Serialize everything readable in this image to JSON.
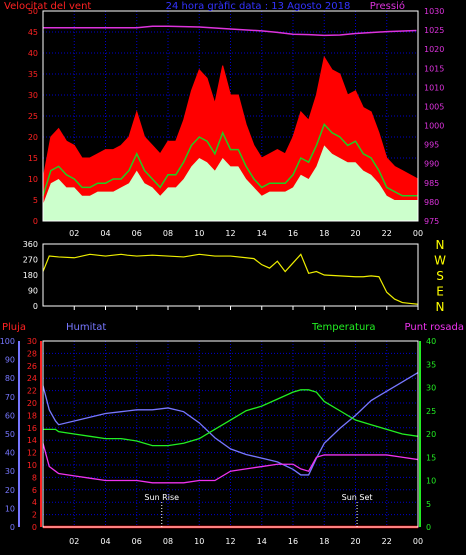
{
  "chart_data": [
    {
      "type": "line",
      "title": "24 hora gràfic data : 13 Agosto 2018",
      "left_axis_label": "Velocitat del vent",
      "right_axis_label": "Pressió",
      "left_ylim": [
        0,
        50
      ],
      "left_yticks": [
        0,
        5,
        10,
        15,
        20,
        25,
        30,
        35,
        40,
        45,
        50
      ],
      "right_ylim": [
        975,
        1030
      ],
      "right_yticks": [
        975,
        980,
        985,
        990,
        995,
        1000,
        1005,
        1010,
        1015,
        1020,
        1025,
        1030
      ],
      "x_tick_labels": [
        "02",
        "04",
        "06",
        "08",
        "10",
        "12",
        "14",
        "16",
        "18",
        "20",
        "22",
        "00"
      ],
      "grid": true,
      "colors": {
        "gust": "#ff0000",
        "avg": "#22cc22",
        "speed": "#ccffcc",
        "pressure": "#dd33dd",
        "grid": "#0000cc"
      },
      "series": [
        {
          "name": "",
          "axis": "right",
          "x": [
            0,
            2,
            4,
            6,
            7,
            8,
            9,
            10,
            12,
            14,
            15,
            16,
            17,
            18,
            19,
            20,
            22,
            23.9
          ],
          "values": [
            1025.6,
            1025.6,
            1025.6,
            1025.6,
            1026,
            1026,
            1025.9,
            1025.8,
            1025.3,
            1024.8,
            1024.4,
            1023.9,
            1023.8,
            1023.6,
            1023.7,
            1024.1,
            1024.6,
            1024.9
          ]
        },
        {
          "name": "",
          "axis": "left",
          "x": [
            0,
            0.5,
            1,
            1.5,
            2,
            2.5,
            3,
            3.5,
            4,
            4.5,
            5,
            5.5,
            6,
            6.5,
            7,
            7.5,
            8,
            8.5,
            9,
            9.5,
            10,
            10.5,
            11,
            11.5,
            12,
            12.5,
            13,
            13.5,
            14,
            14.5,
            15,
            15.5,
            16,
            16.5,
            17,
            17.5,
            18,
            18.5,
            19,
            19.5,
            20,
            20.5,
            21,
            21.5,
            22,
            22.5,
            23,
            23.5,
            24
          ],
          "values": [
            10,
            20,
            22,
            19,
            18,
            15,
            15,
            16,
            17,
            17,
            18,
            20,
            26,
            20,
            18,
            16,
            19,
            19,
            24,
            31,
            36,
            34,
            28,
            37,
            30,
            30,
            23,
            18,
            15,
            16,
            17,
            16,
            20,
            26,
            24,
            30,
            39,
            36,
            35,
            30,
            31,
            27,
            26,
            21,
            15,
            13,
            12,
            11,
            10
          ]
        },
        {
          "name": "",
          "axis": "left",
          "x": [
            0,
            0.5,
            1,
            1.5,
            2,
            2.5,
            3,
            3.5,
            4,
            4.5,
            5,
            5.5,
            6,
            6.5,
            7,
            7.5,
            8,
            8.5,
            9,
            9.5,
            10,
            10.5,
            11,
            11.5,
            12,
            12.5,
            13,
            13.5,
            14,
            14.5,
            15,
            15.5,
            16,
            16.5,
            17,
            17.5,
            18,
            18.5,
            19,
            19.5,
            20,
            20.5,
            21,
            21.5,
            22,
            22.5,
            23,
            23.5,
            24
          ],
          "values": [
            6,
            12,
            13,
            11,
            10,
            8,
            8,
            9,
            9,
            10,
            10,
            12,
            16,
            12,
            10,
            8,
            11,
            11,
            14,
            18,
            20,
            19,
            16,
            21,
            17,
            17,
            13,
            10,
            8,
            9,
            9,
            9,
            11,
            15,
            14,
            18,
            23,
            21,
            20,
            18,
            19,
            16,
            15,
            12,
            8,
            7,
            6,
            6,
            6
          ]
        },
        {
          "name": "",
          "axis": "left",
          "x": [
            0,
            0.5,
            1,
            1.5,
            2,
            2.5,
            3,
            3.5,
            4,
            4.5,
            5,
            5.5,
            6,
            6.5,
            7,
            7.5,
            8,
            8.5,
            9,
            9.5,
            10,
            10.5,
            11,
            11.5,
            12,
            12.5,
            13,
            13.5,
            14,
            14.5,
            15,
            15.5,
            16,
            16.5,
            17,
            17.5,
            18,
            18.5,
            19,
            19.5,
            20,
            20.5,
            21,
            21.5,
            22,
            22.5,
            23,
            23.5,
            24
          ],
          "values": [
            4,
            9,
            10,
            8,
            8,
            6,
            6,
            7,
            7,
            7,
            8,
            9,
            12,
            9,
            8,
            6,
            8,
            8,
            10,
            13,
            15,
            14,
            12,
            15,
            13,
            13,
            10,
            8,
            6,
            7,
            7,
            7,
            8,
            11,
            10,
            13,
            18,
            16,
            15,
            14,
            14,
            12,
            11,
            9,
            6,
            5,
            5,
            5,
            5
          ]
        }
      ]
    },
    {
      "type": "line",
      "y_tick_labels": [
        "0",
        "90",
        "180",
        "270",
        "360"
      ],
      "right_labels": [
        "N",
        "W",
        "S",
        "E",
        "N"
      ],
      "ylim": [
        0,
        360
      ],
      "x_tick_labels": [
        "02",
        "04",
        "06",
        "08",
        "10",
        "12",
        "14",
        "16",
        "18",
        "20",
        "22",
        "00"
      ],
      "colors": {
        "line": "#eeee00"
      },
      "series": [
        {
          "name": "",
          "x": [
            0,
            0.4,
            1,
            2,
            3,
            4,
            5,
            5.4,
            6,
            7,
            8,
            9,
            10,
            11,
            12,
            13,
            13.5,
            14,
            14.5,
            15,
            15.5,
            16,
            16.5,
            17,
            17.5,
            18,
            19,
            20,
            20.5,
            21,
            21.5,
            22,
            22.5,
            23,
            23.5,
            24
          ],
          "values": [
            200,
            290,
            285,
            280,
            300,
            290,
            300,
            295,
            290,
            295,
            290,
            285,
            300,
            290,
            290,
            280,
            275,
            240,
            220,
            260,
            200,
            250,
            300,
            190,
            200,
            180,
            175,
            170,
            170,
            175,
            170,
            80,
            40,
            20,
            15,
            10
          ]
        }
      ]
    },
    {
      "type": "line",
      "left_labels": [
        "Pluja",
        "Humitat"
      ],
      "right_labels": [
        "Temperatura",
        "Punt rosada"
      ],
      "humidity_ylim": [
        0,
        100
      ],
      "humidity_yticks": [
        0,
        10,
        20,
        30,
        40,
        50,
        60,
        70,
        80,
        90,
        100
      ],
      "rain_ylim": [
        0,
        30
      ],
      "rain_yticks": [
        0,
        2,
        4,
        6,
        8,
        10,
        12,
        14,
        16,
        18,
        20,
        22,
        24,
        26,
        28,
        30
      ],
      "temp_ylim": [
        0,
        40
      ],
      "temp_yticks": [
        0,
        5,
        10,
        15,
        20,
        25,
        30,
        35,
        40
      ],
      "x_tick_labels": [
        "02",
        "04",
        "06",
        "08",
        "10",
        "12",
        "14",
        "16",
        "18",
        "20",
        "22",
        "00"
      ],
      "annotations": [
        {
          "label": "Sun Rise",
          "x": 7.6
        },
        {
          "label": "Sun Set",
          "x": 20.1
        }
      ],
      "colors": {
        "humidity": "#7777ff",
        "temperature": "#22ee22",
        "dewpoint": "#ee33ee",
        "rain": "#ff0000",
        "grid": "#0000cc"
      },
      "series": [
        {
          "name": "",
          "axis": "humidity",
          "x": [
            0,
            0.4,
            0.8,
            1,
            2,
            3,
            4,
            5,
            6,
            7,
            8,
            9,
            10,
            11,
            12,
            13,
            14,
            15,
            16,
            16.5,
            17,
            17.5,
            18,
            19,
            20,
            21,
            22,
            23,
            24
          ],
          "values": [
            76,
            63,
            57,
            55,
            57,
            59,
            61,
            62,
            63,
            63,
            64,
            62,
            56,
            48,
            42,
            39,
            37,
            35,
            31,
            28,
            28,
            37,
            45,
            53,
            60,
            68,
            73,
            78,
            83
          ]
        },
        {
          "name": "",
          "axis": "temp",
          "x": [
            0,
            0.4,
            0.8,
            1,
            2,
            3,
            4,
            5,
            6,
            7,
            8,
            9,
            10,
            11,
            12,
            13,
            14,
            15,
            16,
            16.5,
            17,
            17.5,
            18,
            19,
            20,
            21,
            22,
            23,
            24
          ],
          "values": [
            21,
            21,
            21,
            20.5,
            20,
            19.5,
            19,
            19,
            18.5,
            17.5,
            17.5,
            18,
            19,
            21,
            23,
            25,
            26,
            27.5,
            29,
            29.5,
            29.5,
            29,
            27,
            25,
            23,
            22,
            21,
            20,
            19.5
          ]
        },
        {
          "name": "",
          "axis": "temp",
          "x": [
            0,
            0.4,
            0.8,
            1,
            2,
            3,
            4,
            5,
            6,
            7,
            8,
            9,
            10,
            11,
            12,
            13,
            14,
            15,
            16,
            16.5,
            17,
            17.5,
            18,
            19,
            20,
            21,
            22,
            23,
            24
          ],
          "values": [
            18,
            13,
            12,
            11.5,
            11,
            10.5,
            10,
            10,
            10,
            9.5,
            9.5,
            9.5,
            10,
            10,
            12,
            12.5,
            13,
            13.5,
            13.5,
            12.5,
            12,
            15,
            15.5,
            15.5,
            15.5,
            15.5,
            15.5,
            15,
            14.5
          ]
        },
        {
          "name": "",
          "axis": "rain",
          "x": [
            0,
            24
          ],
          "values": [
            0,
            0
          ]
        }
      ]
    }
  ]
}
